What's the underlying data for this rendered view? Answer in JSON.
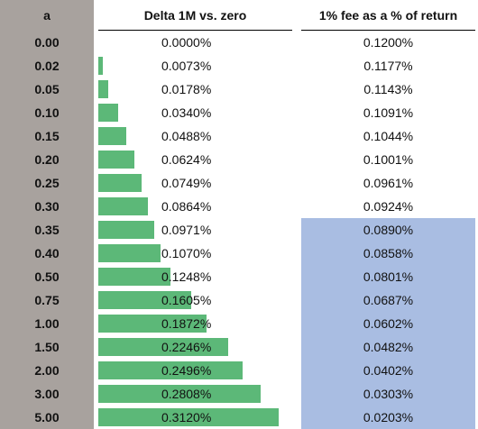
{
  "headers": {
    "a": "a",
    "delta": "Delta 1M vs. zero",
    "fee": "1% fee as a % of return"
  },
  "colors": {
    "a_column": "#a8a29e",
    "bar": "#5cb878",
    "fee_highlight": "#a9bde2"
  },
  "bar_scale_max": 0.312,
  "rows": [
    {
      "a": "0.00",
      "delta": "0.0000%",
      "delta_value": 0.0,
      "fee": "0.1200%",
      "fee_highlight": false
    },
    {
      "a": "0.02",
      "delta": "0.0073%",
      "delta_value": 0.0073,
      "fee": "0.1177%",
      "fee_highlight": false
    },
    {
      "a": "0.05",
      "delta": "0.0178%",
      "delta_value": 0.0178,
      "fee": "0.1143%",
      "fee_highlight": false
    },
    {
      "a": "0.10",
      "delta": "0.0340%",
      "delta_value": 0.034,
      "fee": "0.1091%",
      "fee_highlight": false
    },
    {
      "a": "0.15",
      "delta": "0.0488%",
      "delta_value": 0.0488,
      "fee": "0.1044%",
      "fee_highlight": false
    },
    {
      "a": "0.20",
      "delta": "0.0624%",
      "delta_value": 0.0624,
      "fee": "0.1001%",
      "fee_highlight": false
    },
    {
      "a": "0.25",
      "delta": "0.0749%",
      "delta_value": 0.0749,
      "fee": "0.0961%",
      "fee_highlight": false
    },
    {
      "a": "0.30",
      "delta": "0.0864%",
      "delta_value": 0.0864,
      "fee": "0.0924%",
      "fee_highlight": false
    },
    {
      "a": "0.35",
      "delta": "0.0971%",
      "delta_value": 0.0971,
      "fee": "0.0890%",
      "fee_highlight": true
    },
    {
      "a": "0.40",
      "delta": "0.1070%",
      "delta_value": 0.107,
      "fee": "0.0858%",
      "fee_highlight": true
    },
    {
      "a": "0.50",
      "delta": "0.1248%",
      "delta_value": 0.1248,
      "fee": "0.0801%",
      "fee_highlight": true
    },
    {
      "a": "0.75",
      "delta": "0.1605%",
      "delta_value": 0.1605,
      "fee": "0.0687%",
      "fee_highlight": true
    },
    {
      "a": "1.00",
      "delta": "0.1872%",
      "delta_value": 0.1872,
      "fee": "0.0602%",
      "fee_highlight": true
    },
    {
      "a": "1.50",
      "delta": "0.2246%",
      "delta_value": 0.2246,
      "fee": "0.0482%",
      "fee_highlight": true
    },
    {
      "a": "2.00",
      "delta": "0.2496%",
      "delta_value": 0.2496,
      "fee": "0.0402%",
      "fee_highlight": true
    },
    {
      "a": "3.00",
      "delta": "0.2808%",
      "delta_value": 0.2808,
      "fee": "0.0303%",
      "fee_highlight": true
    },
    {
      "a": "5.00",
      "delta": "0.3120%",
      "delta_value": 0.312,
      "fee": "0.0203%",
      "fee_highlight": true
    }
  ]
}
